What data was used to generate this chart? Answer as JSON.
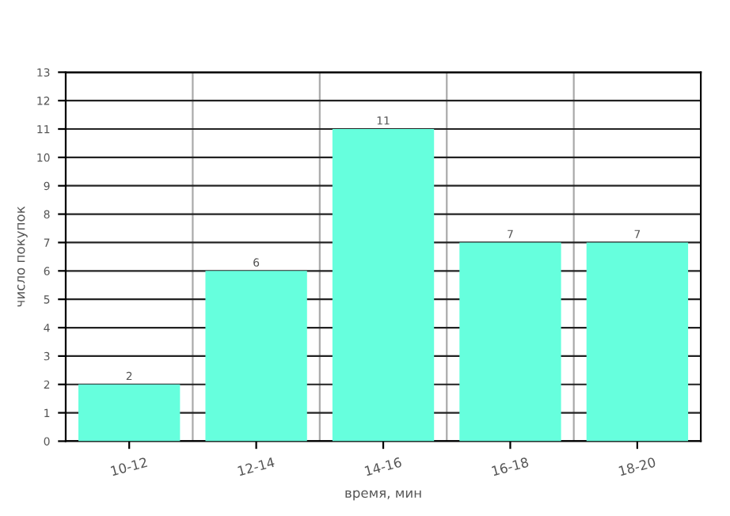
{
  "chart_data": {
    "type": "bar",
    "categories": [
      "10-12",
      "12-14",
      "14-16",
      "16-18",
      "18-20"
    ],
    "values": [
      2,
      6,
      11,
      7,
      7
    ],
    "color": "#66ffdd",
    "xlabel": "время, мин",
    "ylabel": "число покупок",
    "ylim": [
      0,
      13
    ],
    "yticks": [
      0,
      1,
      2,
      3,
      4,
      5,
      6,
      7,
      8,
      9,
      10,
      11,
      12,
      13
    ],
    "grid": true,
    "data_labels": true
  }
}
